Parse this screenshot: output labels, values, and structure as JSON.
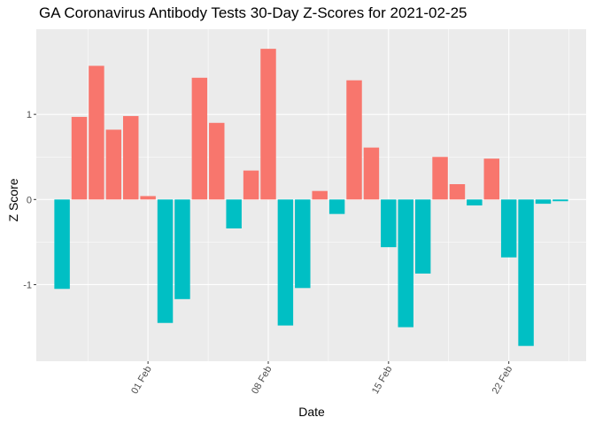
{
  "chart_data": {
    "type": "bar",
    "title": "GA Coronavirus Antibody Tests 30-Day Z-Scores for 2021-02-25",
    "xlabel": "Date",
    "ylabel": "Z Score",
    "x": [
      "2021-01-27",
      "2021-01-28",
      "2021-01-29",
      "2021-01-30",
      "2021-01-31",
      "2021-02-01",
      "2021-02-02",
      "2021-02-03",
      "2021-02-04",
      "2021-02-05",
      "2021-02-06",
      "2021-02-07",
      "2021-02-08",
      "2021-02-09",
      "2021-02-10",
      "2021-02-11",
      "2021-02-12",
      "2021-02-13",
      "2021-02-14",
      "2021-02-15",
      "2021-02-16",
      "2021-02-17",
      "2021-02-18",
      "2021-02-19",
      "2021-02-20",
      "2021-02-21",
      "2021-02-22",
      "2021-02-23",
      "2021-02-24",
      "2021-02-25"
    ],
    "values": [
      -1.05,
      0.97,
      1.57,
      0.82,
      0.98,
      0.04,
      -1.45,
      -1.17,
      1.43,
      0.9,
      -0.34,
      0.34,
      1.77,
      -1.48,
      -1.04,
      0.1,
      -0.17,
      1.4,
      0.61,
      -0.56,
      -1.5,
      -0.87,
      0.5,
      0.18,
      -0.07,
      0.48,
      -0.68,
      -1.72,
      -0.05,
      -0.02
    ],
    "x_ticks": [
      {
        "date": "2021-02-01",
        "label": "01 Feb"
      },
      {
        "date": "2021-02-08",
        "label": "08 Feb"
      },
      {
        "date": "2021-02-15",
        "label": "15 Feb"
      },
      {
        "date": "2021-02-22",
        "label": "22 Feb"
      }
    ],
    "y_ticks": [
      -1,
      0,
      1
    ],
    "ylim": [
      -1.9,
      2.0
    ],
    "xlim": [
      "2021-01-26",
      "2021-02-26"
    ],
    "grid": true,
    "legend": "none",
    "colors": {
      "positive": "#F8766D",
      "negative": "#00BFC4",
      "panel_background": "#EBEBEB",
      "grid": "#FFFFFF"
    }
  }
}
